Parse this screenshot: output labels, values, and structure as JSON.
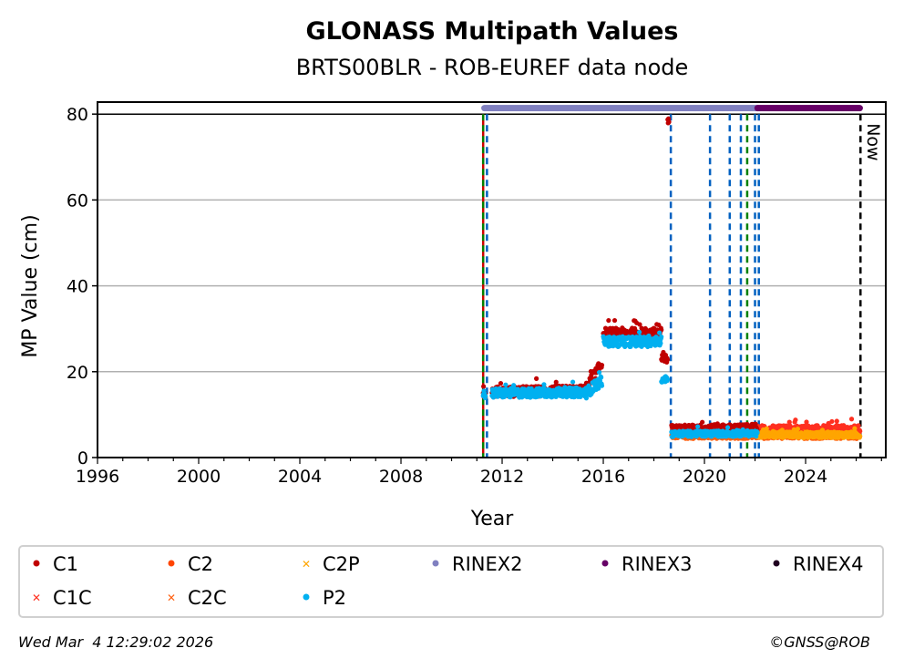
{
  "chart_data": {
    "type": "scatter",
    "title": "GLONASS Multipath Values",
    "subtitle": "BRTS00BLR - ROB-EUREF data node",
    "xlabel": "Year",
    "ylabel": "MP Value (cm)",
    "xlim": [
      1996,
      2027.17
    ],
    "ylim": [
      0,
      82.8
    ],
    "xticks": [
      1996,
      2000,
      2004,
      2008,
      2012,
      2016,
      2020,
      2024
    ],
    "yticks": [
      0,
      20,
      40,
      60,
      80
    ],
    "grid": "y",
    "legend_position": "bottom",
    "legend": [
      {
        "name": "C1",
        "color": "#c00000",
        "marker": "dot"
      },
      {
        "name": "C2",
        "color": "#ff4500",
        "marker": "dot"
      },
      {
        "name": "C2P",
        "color": "#ffa500",
        "marker": "x"
      },
      {
        "name": "RINEX2",
        "color": "#8080c0",
        "marker": "dot"
      },
      {
        "name": "RINEX3",
        "color": "#660066",
        "marker": "dot"
      },
      {
        "name": "RINEX4",
        "color": "#200020",
        "marker": "dot"
      },
      {
        "name": "C1C",
        "color": "#ff3020",
        "marker": "x"
      },
      {
        "name": "C2C",
        "color": "#ff6010",
        "marker": "x"
      },
      {
        "name": "P2",
        "color": "#00b0f0",
        "marker": "dot"
      }
    ],
    "segments": [
      {
        "series": "C2C",
        "from": 2018.7,
        "to": 2026.15,
        "start": 5.0,
        "end": 5.0,
        "noise": 0.6
      },
      {
        "series": "C1C",
        "from": 2022.1,
        "to": 2026.15,
        "start": 6.5,
        "end": 6.5,
        "noise": 1.0
      },
      {
        "series": "C2P",
        "from": 2022.1,
        "to": 2026.15,
        "start": 5.3,
        "end": 5.3,
        "noise": 0.7
      },
      {
        "series": "C1",
        "from": 2011.25,
        "to": 2011.35,
        "start": 15,
        "end": 15,
        "noise": 1.0
      },
      {
        "series": "C1",
        "from": 2011.6,
        "to": 2015.3,
        "start": 15.3,
        "end": 15.6,
        "noise": 1.2
      },
      {
        "series": "C1",
        "from": 2015.3,
        "to": 2015.95,
        "start": 16,
        "end": 22,
        "noise": 1.2
      },
      {
        "series": "C1",
        "from": 2016.0,
        "to": 2018.3,
        "start": 29,
        "end": 29,
        "noise": 1.2
      },
      {
        "series": "C1",
        "from": 2018.3,
        "to": 2018.55,
        "start": 23,
        "end": 23,
        "noise": 1.0
      },
      {
        "series": "C1",
        "from": 2018.55,
        "to": 2018.6,
        "start": 78.5,
        "end": 78.5,
        "noise": 0.6
      },
      {
        "series": "C1",
        "from": 2018.7,
        "to": 2022.1,
        "start": 6.8,
        "end": 7.0,
        "noise": 0.8
      },
      {
        "series": "P2",
        "from": 2011.25,
        "to": 2011.35,
        "start": 14.8,
        "end": 14.8,
        "noise": 1.0
      },
      {
        "series": "P2",
        "from": 2011.6,
        "to": 2015.3,
        "start": 15,
        "end": 15.2,
        "noise": 1.1
      },
      {
        "series": "P2",
        "from": 2015.3,
        "to": 2015.95,
        "start": 15,
        "end": 18,
        "noise": 1.3
      },
      {
        "series": "P2",
        "from": 2016.0,
        "to": 2018.3,
        "start": 27,
        "end": 27,
        "noise": 1.2
      },
      {
        "series": "P2",
        "from": 2018.3,
        "to": 2018.55,
        "start": 18.5,
        "end": 18.5,
        "noise": 1.0
      },
      {
        "series": "P2",
        "from": 2018.7,
        "to": 2022.1,
        "start": 5.5,
        "end": 5.6,
        "noise": 0.7
      },
      {
        "series": "RINEX2",
        "from": 2011.3,
        "to": 2022.1,
        "start": 81.4,
        "end": 81.4,
        "noise": 0
      },
      {
        "series": "RINEX3",
        "from": 2022.1,
        "to": 2026.15,
        "start": 81.4,
        "end": 81.4,
        "noise": 0
      }
    ],
    "vlines": [
      {
        "x": 2011.25,
        "color": "#d00000",
        "style": "solid"
      },
      {
        "x": 2011.25,
        "color": "#008000",
        "style": "dashed"
      },
      {
        "x": 2011.4,
        "color": "#0060c0",
        "style": "dashed"
      },
      {
        "x": 2018.67,
        "color": "#0060c0",
        "style": "dashed"
      },
      {
        "x": 2020.22,
        "color": "#0060c0",
        "style": "dashed"
      },
      {
        "x": 2021.0,
        "color": "#0060c0",
        "style": "dashed"
      },
      {
        "x": 2021.44,
        "color": "#0060c0",
        "style": "dashed"
      },
      {
        "x": 2021.69,
        "color": "#008000",
        "style": "dashed"
      },
      {
        "x": 2022.0,
        "color": "#0060c0",
        "style": "dashed"
      },
      {
        "x": 2022.15,
        "color": "#0060c0",
        "style": "dashed"
      },
      {
        "x": 2026.17,
        "color": "#000000",
        "style": "dashed"
      }
    ],
    "hline": 80,
    "now_label": "Now",
    "now_x": 2026.17
  },
  "footer": {
    "timestamp": "Wed Mar  4 12:29:02 2026",
    "credit": "©GNSS@ROB"
  }
}
